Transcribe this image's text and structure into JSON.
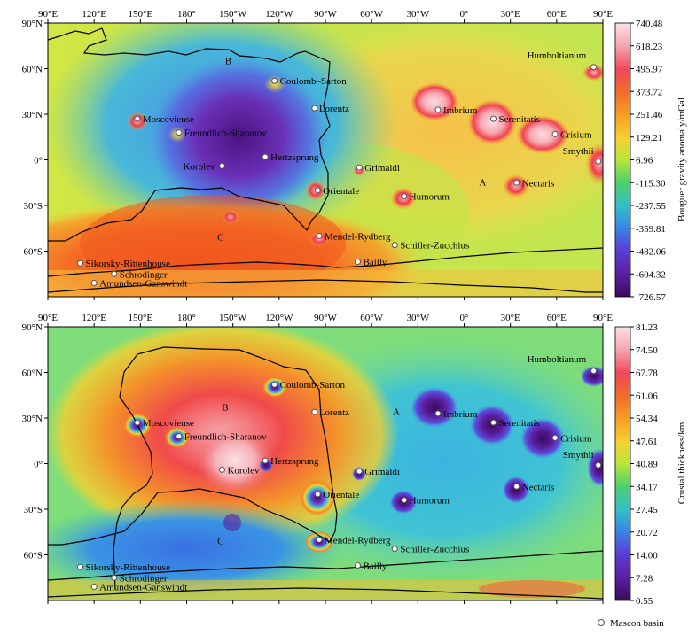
{
  "panels": [
    {
      "id": "gravity",
      "colorbar_title": "Bouguer gravity anomaly/mGal",
      "colorbar_ticks": [
        "740.48",
        "618.23",
        "495.97",
        "373.72",
        "251.46",
        "129.21",
        "6.96",
        "-115.30",
        "-237.55",
        "-359.81",
        "-482.06",
        "-604.32",
        "-726.57"
      ],
      "regions": [
        {
          "id": "A",
          "label": "A",
          "lon": 12,
          "lat": -17
        },
        {
          "id": "B",
          "label": "B",
          "lon": -153,
          "lat": 63
        },
        {
          "id": "C",
          "label": "C",
          "lon": -158,
          "lat": -53
        }
      ],
      "basins": [
        {
          "name": "Humboltianum",
          "lon": 84,
          "lat": 61,
          "lx": -75,
          "ly": -10
        },
        {
          "name": "Coulomb–Sarton",
          "lon": -123,
          "lat": 52,
          "lx": 6,
          "ly": 4
        },
        {
          "name": "Lorentz",
          "lon": -97,
          "lat": 34,
          "lx": 5,
          "ly": 4
        },
        {
          "name": "Imbrium",
          "lon": -17,
          "lat": 33,
          "lx": 6,
          "ly": 4
        },
        {
          "name": "Serenitatis",
          "lon": 19,
          "lat": 27,
          "lx": 6,
          "ly": 4
        },
        {
          "name": "Crisium",
          "lon": 59,
          "lat": 17,
          "lx": 6,
          "ly": 4
        },
        {
          "name": "Moscoviense",
          "lon": 148,
          "lat": 27,
          "lx": 6,
          "ly": 4
        },
        {
          "name": "Freundlich-Sharanov",
          "lon": 175,
          "lat": 18,
          "lx": 6,
          "ly": 4
        },
        {
          "name": "Smythii",
          "lon": 87,
          "lat": -1,
          "lx": -40,
          "ly": -8
        },
        {
          "name": "Hertzsprung",
          "lon": -129,
          "lat": 2,
          "lx": 6,
          "ly": 4
        },
        {
          "name": "Korolev",
          "lon": -157,
          "lat": -4,
          "lx": -44,
          "ly": 4
        },
        {
          "name": "Grimaldi",
          "lon": -68,
          "lat": -5,
          "lx": 6,
          "ly": 4
        },
        {
          "name": "Orientale",
          "lon": -95,
          "lat": -20,
          "lx": 6,
          "ly": 4
        },
        {
          "name": "Nectaris",
          "lon": 34,
          "lat": -15,
          "lx": 6,
          "ly": 4
        },
        {
          "name": "Humorum",
          "lon": -39,
          "lat": -24,
          "lx": 6,
          "ly": 4
        },
        {
          "name": "Mendel-Rydberg",
          "lon": -94,
          "lat": -50,
          "lx": 6,
          "ly": 4
        },
        {
          "name": "Schiller-Zucchius",
          "lon": -45,
          "lat": -56,
          "lx": 6,
          "ly": 4
        },
        {
          "name": "Bailly",
          "lon": -69,
          "lat": -67,
          "lx": 6,
          "ly": 4
        },
        {
          "name": "Sikorsky-Rittenhouse",
          "lon": 111,
          "lat": -68,
          "lx": 6,
          "ly": 4
        },
        {
          "name": "Schrodinger",
          "lon": 133,
          "lat": -75,
          "lx": 6,
          "ly": 4
        },
        {
          "name": "Amundsen-Ganswindt",
          "lon": 120,
          "lat": -81,
          "lx": 6,
          "ly": 4
        }
      ]
    },
    {
      "id": "crust",
      "colorbar_title": "Crustal thickness/km",
      "colorbar_ticks": [
        "81.23",
        "74.50",
        "67.78",
        "61.06",
        "54.34",
        "47.61",
        "40.89",
        "34.17",
        "27.45",
        "20.72",
        "14.00",
        "7.28",
        "0.55"
      ],
      "regions": [
        {
          "id": "A",
          "label": "A",
          "lon": -44,
          "lat": 32
        },
        {
          "id": "B",
          "label": "B",
          "lon": -155,
          "lat": 35
        },
        {
          "id": "C",
          "label": "C",
          "lon": -158,
          "lat": -53
        }
      ],
      "basins": [
        {
          "name": "Humboltianum",
          "lon": 84,
          "lat": 61,
          "lx": -75,
          "ly": -10
        },
        {
          "name": "Coulomb-Sarton",
          "lon": -123,
          "lat": 52,
          "lx": 6,
          "ly": 4
        },
        {
          "name": "Lorentz",
          "lon": -97,
          "lat": 34,
          "lx": 5,
          "ly": 4
        },
        {
          "name": "Imbrium",
          "lon": -17,
          "lat": 33,
          "lx": 6,
          "ly": 4
        },
        {
          "name": "Serenitatis",
          "lon": 19,
          "lat": 27,
          "lx": 6,
          "ly": 4
        },
        {
          "name": "Crisium",
          "lon": 59,
          "lat": 17,
          "lx": 6,
          "ly": 4
        },
        {
          "name": "Moscoviense",
          "lon": 148,
          "lat": 27,
          "lx": 6,
          "ly": 4
        },
        {
          "name": "Freundlich-Sharanov",
          "lon": 175,
          "lat": 18,
          "lx": 6,
          "ly": 4
        },
        {
          "name": "Smythii",
          "lon": 87,
          "lat": -1,
          "lx": -40,
          "ly": -8
        },
        {
          "name": "Hertzsprung",
          "lon": -129,
          "lat": 2,
          "lx": 6,
          "ly": 4
        },
        {
          "name": "Korolev",
          "lon": -157,
          "lat": -4,
          "lx": 6,
          "ly": 4
        },
        {
          "name": "Grimaldi",
          "lon": -68,
          "lat": -5,
          "lx": 6,
          "ly": 4
        },
        {
          "name": "Orientale",
          "lon": -95,
          "lat": -20,
          "lx": 6,
          "ly": 4
        },
        {
          "name": "Nectaris",
          "lon": 34,
          "lat": -15,
          "lx": 6,
          "ly": 4
        },
        {
          "name": "Humorum",
          "lon": -39,
          "lat": -24,
          "lx": 6,
          "ly": 4
        },
        {
          "name": "Mendel-Rydberg",
          "lon": -94,
          "lat": -50,
          "lx": 6,
          "ly": 4
        },
        {
          "name": "Schiller-Zucchius",
          "lon": -45,
          "lat": -56,
          "lx": 6,
          "ly": 4
        },
        {
          "name": "Bailly",
          "lon": -69,
          "lat": -67,
          "lx": 6,
          "ly": 4
        },
        {
          "name": "Sikorsky-Rittenhouse",
          "lon": 111,
          "lat": -68,
          "lx": 6,
          "ly": 4
        },
        {
          "name": "Schrodinger",
          "lon": 133,
          "lat": -75,
          "lx": 6,
          "ly": 4
        },
        {
          "name": "Amundsen-Ganswindt",
          "lon": 120,
          "lat": -81,
          "lx": 6,
          "ly": 4
        }
      ]
    }
  ],
  "lon_ticks": [
    "90°E",
    "120°E",
    "150°E",
    "180°",
    "150°W",
    "120°W",
    "90°W",
    "60°W",
    "30°W",
    "0°",
    "30°E",
    "60°E",
    "90°E"
  ],
  "lat_ticks": [
    "90°N",
    "60°N",
    "30°N",
    "0°",
    "30°S",
    "60°S"
  ],
  "legend": {
    "label": "Mascon basin"
  }
}
